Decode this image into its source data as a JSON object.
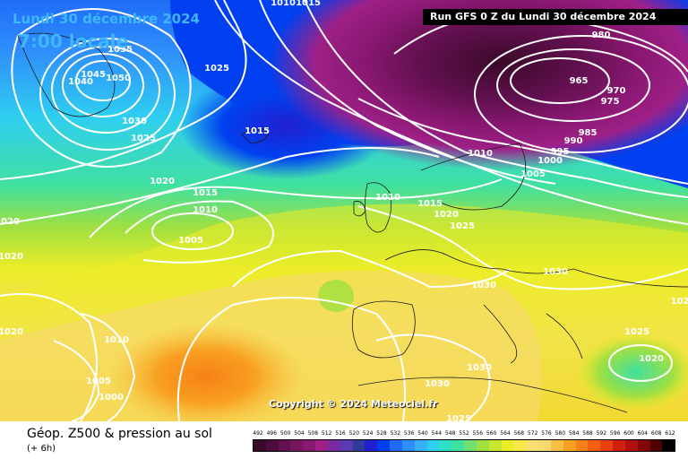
{
  "header": {
    "date_text": "Lundi 30 décembre 2024",
    "local_time": "7:00 locale",
    "run_text": "Run GFS 0 Z du Lundi 30 décembre 2024"
  },
  "footer": {
    "product_title": "Géop. Z500 & pression au sol",
    "offset": "(+ 6h)",
    "copyright": "Copyright © 2024 Meteociel.fr"
  },
  "colors": {
    "legend_stops": [
      "#3a0a2a",
      "#4e0c3c",
      "#62104f",
      "#761460",
      "#8a1873",
      "#9e2086",
      "#7a2aa0",
      "#5a3ab0",
      "#303c9a",
      "#2020d0",
      "#0040f0",
      "#1f6cf8",
      "#2f8efb",
      "#38b0fb",
      "#2fcff0",
      "#2fe0c8",
      "#40e0a0",
      "#70e070",
      "#a0e040",
      "#c8e830",
      "#ecec28",
      "#f8e848",
      "#f8e070",
      "#f8d870",
      "#f8c040",
      "#f8a020",
      "#f88018",
      "#f86010",
      "#e84010",
      "#d02010",
      "#b01010",
      "#800808",
      "#500000",
      "#000000"
    ]
  },
  "legend": {
    "values": [
      "492",
      "496",
      "500",
      "504",
      "508",
      "512",
      "516",
      "520",
      "524",
      "528",
      "532",
      "536",
      "540",
      "544",
      "548",
      "552",
      "556",
      "560",
      "564",
      "568",
      "572",
      "576",
      "580",
      "584",
      "588",
      "592",
      "596",
      "600",
      "604",
      "608",
      "612"
    ]
  },
  "isobars": {
    "labels": [
      "1010",
      "1015",
      "1035",
      "1025",
      "1045",
      "1040",
      "1050",
      "1030",
      "1025",
      "1015",
      "980",
      "965",
      "970",
      "975",
      "985",
      "990",
      "995",
      "1000",
      "1005",
      "1010",
      "1020",
      "1015",
      "1010",
      "1005",
      "1020",
      "1010",
      "1015",
      "1020",
      "1025",
      "1030",
      "1030",
      "1020",
      "1020",
      "1010",
      "1005",
      "1000",
      "1030",
      "1030",
      "1025",
      "1020",
      "1025",
      "102"
    ]
  }
}
